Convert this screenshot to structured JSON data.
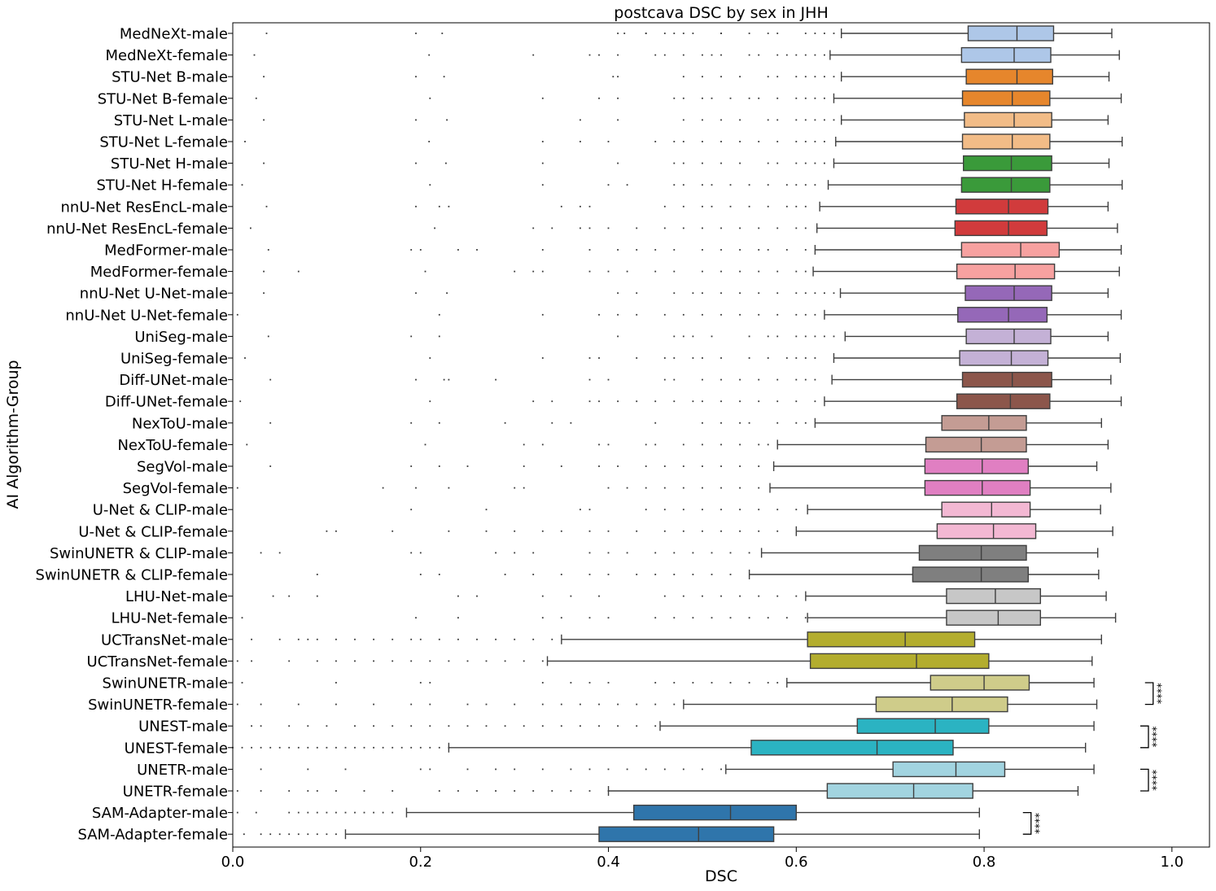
{
  "chart_data": {
    "type": "boxplot",
    "orientation": "horizontal",
    "title": "postcava DSC by sex in JHH",
    "xlabel": "DSC",
    "ylabel": "AI Algorithm-Group",
    "xlim": [
      0.0,
      1.04
    ],
    "xticks": [
      "0.0",
      "0.2",
      "0.4",
      "0.6",
      "0.8",
      "1.0"
    ],
    "xtick_values": [
      0.0,
      0.2,
      0.4,
      0.6,
      0.8,
      1.0
    ],
    "grid": false,
    "groups": [
      {
        "label": "MedNeXt-male",
        "color": "#aec7e8",
        "whislo": 0.648,
        "q1": 0.783,
        "median": 0.835,
        "q3": 0.874,
        "whishi": 0.936,
        "outliers": [
          0.036,
          0.195,
          0.223,
          0.41,
          0.417,
          0.44,
          0.44,
          0.46,
          0.47,
          0.48,
          0.49,
          0.52,
          0.52,
          0.55,
          0.57,
          0.58,
          0.61,
          0.62,
          0.63,
          0.64
        ]
      },
      {
        "label": "MedNeXt-female",
        "color": "#aec7e8",
        "whislo": 0.636,
        "q1": 0.776,
        "median": 0.832,
        "q3": 0.871,
        "whishi": 0.944,
        "outliers": [
          0.023,
          0.209,
          0.32,
          0.38,
          0.39,
          0.41,
          0.45,
          0.46,
          0.48,
          0.5,
          0.51,
          0.52,
          0.55,
          0.56,
          0.58,
          0.59,
          0.6,
          0.61,
          0.62,
          0.63
        ]
      },
      {
        "label": "STU-Net B-male",
        "color": "#e6862c",
        "whislo": 0.648,
        "q1": 0.781,
        "median": 0.835,
        "q3": 0.873,
        "whishi": 0.933,
        "outliers": [
          0.033,
          0.195,
          0.225,
          0.405,
          0.41,
          0.48,
          0.5,
          0.52,
          0.54,
          0.57,
          0.58,
          0.6,
          0.61,
          0.62,
          0.63,
          0.64
        ]
      },
      {
        "label": "STU-Net B-female",
        "color": "#e6862c",
        "whislo": 0.64,
        "q1": 0.777,
        "median": 0.83,
        "q3": 0.87,
        "whishi": 0.946,
        "outliers": [
          0.025,
          0.21,
          0.33,
          0.39,
          0.41,
          0.47,
          0.48,
          0.5,
          0.51,
          0.53,
          0.55,
          0.56,
          0.58,
          0.6,
          0.61,
          0.62,
          0.63
        ]
      },
      {
        "label": "STU-Net L-male",
        "color": "#f2bc87",
        "whislo": 0.648,
        "q1": 0.779,
        "median": 0.832,
        "q3": 0.872,
        "whishi": 0.932,
        "outliers": [
          0.033,
          0.195,
          0.228,
          0.37,
          0.41,
          0.48,
          0.5,
          0.52,
          0.54,
          0.57,
          0.58,
          0.6,
          0.61,
          0.62,
          0.63,
          0.64
        ]
      },
      {
        "label": "STU-Net L-female",
        "color": "#f2bc87",
        "whislo": 0.642,
        "q1": 0.777,
        "median": 0.83,
        "q3": 0.87,
        "whishi": 0.947,
        "outliers": [
          0.013,
          0.209,
          0.33,
          0.37,
          0.4,
          0.45,
          0.47,
          0.48,
          0.5,
          0.52,
          0.54,
          0.56,
          0.58,
          0.6,
          0.61,
          0.62,
          0.63
        ]
      },
      {
        "label": "STU-Net H-male",
        "color": "#3a9a3a",
        "whislo": 0.64,
        "q1": 0.778,
        "median": 0.829,
        "q3": 0.872,
        "whishi": 0.933,
        "outliers": [
          0.033,
          0.195,
          0.227,
          0.33,
          0.41,
          0.47,
          0.48,
          0.5,
          0.52,
          0.54,
          0.57,
          0.58,
          0.6,
          0.61,
          0.62,
          0.63
        ]
      },
      {
        "label": "STU-Net H-female",
        "color": "#3a9a3a",
        "whislo": 0.634,
        "q1": 0.776,
        "median": 0.829,
        "q3": 0.87,
        "whishi": 0.947,
        "outliers": [
          0.01,
          0.21,
          0.33,
          0.4,
          0.42,
          0.47,
          0.48,
          0.5,
          0.51,
          0.53,
          0.55,
          0.57,
          0.59,
          0.6,
          0.61,
          0.62
        ]
      },
      {
        "label": "nnU-Net ResEncL-male",
        "color": "#d13b3c",
        "whislo": 0.625,
        "q1": 0.77,
        "median": 0.826,
        "q3": 0.868,
        "whishi": 0.932,
        "outliers": [
          0.036,
          0.195,
          0.22,
          0.23,
          0.35,
          0.37,
          0.38,
          0.46,
          0.48,
          0.5,
          0.51,
          0.53,
          0.55,
          0.57,
          0.59,
          0.6,
          0.61
        ]
      },
      {
        "label": "nnU-Net ResEncL-female",
        "color": "#d13b3c",
        "whislo": 0.622,
        "q1": 0.769,
        "median": 0.826,
        "q3": 0.867,
        "whishi": 0.942,
        "outliers": [
          0.019,
          0.215,
          0.32,
          0.34,
          0.37,
          0.38,
          0.4,
          0.43,
          0.46,
          0.48,
          0.5,
          0.52,
          0.54,
          0.56,
          0.58,
          0.6,
          0.61
        ]
      },
      {
        "label": "MedFormer-male",
        "color": "#f7a1a0",
        "whislo": 0.62,
        "q1": 0.776,
        "median": 0.839,
        "q3": 0.88,
        "whishi": 0.946,
        "outliers": [
          0.038,
          0.19,
          0.2,
          0.24,
          0.26,
          0.33,
          0.38,
          0.41,
          0.43,
          0.45,
          0.47,
          0.5,
          0.52,
          0.54,
          0.56,
          0.57,
          0.59,
          0.61
        ]
      },
      {
        "label": "MedFormer-female",
        "color": "#f7a1a0",
        "whislo": 0.618,
        "q1": 0.771,
        "median": 0.833,
        "q3": 0.875,
        "whishi": 0.944,
        "outliers": [
          0.033,
          0.07,
          0.205,
          0.3,
          0.32,
          0.33,
          0.38,
          0.4,
          0.42,
          0.45,
          0.47,
          0.5,
          0.52,
          0.54,
          0.56,
          0.58,
          0.6,
          0.61
        ]
      },
      {
        "label": "nnU-Net U-Net-male",
        "color": "#9568b8",
        "whislo": 0.647,
        "q1": 0.78,
        "median": 0.832,
        "q3": 0.872,
        "whishi": 0.932,
        "outliers": [
          0.033,
          0.195,
          0.228,
          0.41,
          0.43,
          0.47,
          0.49,
          0.5,
          0.52,
          0.54,
          0.56,
          0.58,
          0.6,
          0.61,
          0.62,
          0.63,
          0.64
        ]
      },
      {
        "label": "nnU-Net U-Net-female",
        "color": "#9568b8",
        "whislo": 0.63,
        "q1": 0.772,
        "median": 0.826,
        "q3": 0.867,
        "whishi": 0.946,
        "outliers": [
          0.005,
          0.22,
          0.33,
          0.39,
          0.41,
          0.43,
          0.46,
          0.48,
          0.5,
          0.52,
          0.54,
          0.56,
          0.58,
          0.6,
          0.61,
          0.62
        ]
      },
      {
        "label": "UniSeg-male",
        "color": "#c4b1d6",
        "whislo": 0.652,
        "q1": 0.781,
        "median": 0.832,
        "q3": 0.871,
        "whishi": 0.932,
        "outliers": [
          0.038,
          0.19,
          0.22,
          0.41,
          0.47,
          0.48,
          0.49,
          0.51,
          0.55,
          0.57,
          0.58,
          0.6,
          0.61,
          0.62,
          0.63,
          0.64
        ]
      },
      {
        "label": "UniSeg-female",
        "color": "#c4b1d6",
        "whislo": 0.64,
        "q1": 0.774,
        "median": 0.829,
        "q3": 0.868,
        "whishi": 0.945,
        "outliers": [
          0.013,
          0.21,
          0.33,
          0.38,
          0.39,
          0.43,
          0.46,
          0.47,
          0.49,
          0.5,
          0.52,
          0.55,
          0.57,
          0.59,
          0.6,
          0.61,
          0.62
        ]
      },
      {
        "label": "Diff-UNet-male",
        "color": "#8c564b",
        "whislo": 0.638,
        "q1": 0.777,
        "median": 0.83,
        "q3": 0.872,
        "whishi": 0.935,
        "outliers": [
          0.04,
          0.195,
          0.225,
          0.23,
          0.28,
          0.38,
          0.4,
          0.46,
          0.47,
          0.5,
          0.52,
          0.54,
          0.56,
          0.58,
          0.6,
          0.61,
          0.62
        ]
      },
      {
        "label": "Diff-UNet-female",
        "color": "#8c564b",
        "whislo": 0.63,
        "q1": 0.771,
        "median": 0.828,
        "q3": 0.87,
        "whishi": 0.946,
        "outliers": [
          0.008,
          0.21,
          0.32,
          0.34,
          0.38,
          0.39,
          0.41,
          0.43,
          0.45,
          0.47,
          0.49,
          0.5,
          0.52,
          0.54,
          0.56,
          0.58,
          0.6,
          0.62
        ]
      },
      {
        "label": "NexToU-male",
        "color": "#c49c94",
        "whislo": 0.62,
        "q1": 0.755,
        "median": 0.805,
        "q3": 0.845,
        "whishi": 0.925,
        "outliers": [
          0.04,
          0.19,
          0.22,
          0.29,
          0.34,
          0.36,
          0.45,
          0.5,
          0.52,
          0.54,
          0.55,
          0.58,
          0.6,
          0.61
        ]
      },
      {
        "label": "NexToU-female",
        "color": "#c49c94",
        "whislo": 0.58,
        "q1": 0.738,
        "median": 0.797,
        "q3": 0.845,
        "whishi": 0.932,
        "outliers": [
          0.015,
          0.205,
          0.31,
          0.33,
          0.39,
          0.4,
          0.44,
          0.45,
          0.48,
          0.5,
          0.52,
          0.54,
          0.56,
          0.57
        ]
      },
      {
        "label": "SegVol-male",
        "color": "#e07fc2",
        "whislo": 0.576,
        "q1": 0.737,
        "median": 0.798,
        "q3": 0.847,
        "whishi": 0.92,
        "outliers": [
          0.04,
          0.19,
          0.22,
          0.25,
          0.31,
          0.35,
          0.39,
          0.41,
          0.44,
          0.46,
          0.48,
          0.5,
          0.52,
          0.54,
          0.56
        ]
      },
      {
        "label": "SegVol-female",
        "color": "#e07fc2",
        "whislo": 0.572,
        "q1": 0.737,
        "median": 0.798,
        "q3": 0.849,
        "whishi": 0.935,
        "outliers": [
          0.005,
          0.16,
          0.195,
          0.23,
          0.3,
          0.31,
          0.4,
          0.42,
          0.44,
          0.46,
          0.48,
          0.5,
          0.52,
          0.54,
          0.56
        ]
      },
      {
        "label": "U-Net & CLIP-male",
        "color": "#f3b8d3",
        "whislo": 0.612,
        "q1": 0.755,
        "median": 0.808,
        "q3": 0.849,
        "whishi": 0.924,
        "outliers": [
          0.19,
          0.27,
          0.37,
          0.38,
          0.44,
          0.46,
          0.48,
          0.5,
          0.52,
          0.54,
          0.56,
          0.58,
          0.6
        ]
      },
      {
        "label": "U-Net & CLIP-female",
        "color": "#f3b8d3",
        "whislo": 0.6,
        "q1": 0.75,
        "median": 0.81,
        "q3": 0.855,
        "whishi": 0.937,
        "outliers": [
          0.1,
          0.11,
          0.17,
          0.23,
          0.27,
          0.3,
          0.33,
          0.35,
          0.38,
          0.4,
          0.43,
          0.46,
          0.48,
          0.5,
          0.52,
          0.54,
          0.56,
          0.58
        ]
      },
      {
        "label": "SwinUNETR & CLIP-male",
        "color": "#7f7f7f",
        "whislo": 0.563,
        "q1": 0.731,
        "median": 0.797,
        "q3": 0.845,
        "whishi": 0.921,
        "outliers": [
          0.03,
          0.05,
          0.19,
          0.2,
          0.28,
          0.3,
          0.32,
          0.38,
          0.4,
          0.42,
          0.45,
          0.47,
          0.49,
          0.51,
          0.53,
          0.55
        ]
      },
      {
        "label": "SwinUNETR & CLIP-female",
        "color": "#7f7f7f",
        "whislo": 0.55,
        "q1": 0.724,
        "median": 0.797,
        "q3": 0.847,
        "whishi": 0.922,
        "outliers": [
          0.09,
          0.2,
          0.22,
          0.29,
          0.32,
          0.35,
          0.38,
          0.4,
          0.43,
          0.45,
          0.47,
          0.49,
          0.51,
          0.53
        ]
      },
      {
        "label": "LHU-Net-male",
        "color": "#c7c7c7",
        "whislo": 0.61,
        "q1": 0.76,
        "median": 0.812,
        "q3": 0.86,
        "whishi": 0.93,
        "outliers": [
          0.043,
          0.06,
          0.09,
          0.24,
          0.26,
          0.33,
          0.36,
          0.39,
          0.46,
          0.48,
          0.5,
          0.52,
          0.54,
          0.56,
          0.58,
          0.6
        ]
      },
      {
        "label": "LHU-Net-female",
        "color": "#c7c7c7",
        "whislo": 0.612,
        "q1": 0.76,
        "median": 0.815,
        "q3": 0.86,
        "whishi": 0.94,
        "outliers": [
          0.01,
          0.195,
          0.24,
          0.33,
          0.35,
          0.38,
          0.4,
          0.45,
          0.47,
          0.49,
          0.51,
          0.53,
          0.55,
          0.57,
          0.59,
          0.61
        ]
      },
      {
        "label": "UCTransNet-male",
        "color": "#b3ad2e",
        "whislo": 0.35,
        "q1": 0.612,
        "median": 0.716,
        "q3": 0.79,
        "whishi": 0.925,
        "outliers": [
          0.02,
          0.05,
          0.07,
          0.08,
          0.09,
          0.11,
          0.13,
          0.15,
          0.17,
          0.19,
          0.2,
          0.22,
          0.24,
          0.26,
          0.28,
          0.3,
          0.32,
          0.34
        ]
      },
      {
        "label": "UCTransNet-female",
        "color": "#b3ad2e",
        "whislo": 0.335,
        "q1": 0.615,
        "median": 0.728,
        "q3": 0.805,
        "whishi": 0.915,
        "outliers": [
          0.005,
          0.02,
          0.06,
          0.09,
          0.11,
          0.13,
          0.15,
          0.17,
          0.19,
          0.21,
          0.23,
          0.25,
          0.27,
          0.29,
          0.31,
          0.33
        ]
      },
      {
        "label": "SwinUNETR-male",
        "color": "#cfcc8a",
        "whislo": 0.59,
        "q1": 0.743,
        "median": 0.8,
        "q3": 0.848,
        "whishi": 0.917,
        "outliers": [
          0.01,
          0.11,
          0.2,
          0.21,
          0.33,
          0.36,
          0.38,
          0.4,
          0.45,
          0.47,
          0.49,
          0.51,
          0.53,
          0.55,
          0.57,
          0.58
        ]
      },
      {
        "label": "SwinUNETR-female",
        "color": "#cfcc8a",
        "whislo": 0.48,
        "q1": 0.685,
        "median": 0.766,
        "q3": 0.825,
        "whishi": 0.92,
        "outliers": [
          0.005,
          0.03,
          0.07,
          0.11,
          0.15,
          0.19,
          0.21,
          0.25,
          0.27,
          0.3,
          0.33,
          0.35,
          0.37,
          0.39,
          0.41,
          0.43,
          0.45,
          0.47
        ]
      },
      {
        "label": "UNEST-male",
        "color": "#2bb3c2",
        "whislo": 0.455,
        "q1": 0.665,
        "median": 0.748,
        "q3": 0.805,
        "whishi": 0.917,
        "outliers": [
          0.02,
          0.03,
          0.06,
          0.08,
          0.1,
          0.13,
          0.15,
          0.17,
          0.19,
          0.21,
          0.23,
          0.25,
          0.27,
          0.29,
          0.31,
          0.33,
          0.35,
          0.37,
          0.39,
          0.41,
          0.43,
          0.45
        ]
      },
      {
        "label": "UNEST-female",
        "color": "#2bb3c2",
        "whislo": 0.23,
        "q1": 0.552,
        "median": 0.686,
        "q3": 0.767,
        "whishi": 0.908,
        "outliers": [
          0.0,
          0.01,
          0.02,
          0.03,
          0.04,
          0.05,
          0.06,
          0.07,
          0.08,
          0.09,
          0.1,
          0.11,
          0.12,
          0.13,
          0.14,
          0.15,
          0.16,
          0.17,
          0.18,
          0.19,
          0.2,
          0.21,
          0.22,
          0.23
        ]
      },
      {
        "label": "UNETR-male",
        "color": "#a2d4e0",
        "whislo": 0.525,
        "q1": 0.703,
        "median": 0.77,
        "q3": 0.822,
        "whishi": 0.917,
        "outliers": [
          0.03,
          0.08,
          0.12,
          0.2,
          0.21,
          0.25,
          0.28,
          0.3,
          0.33,
          0.36,
          0.38,
          0.4,
          0.42,
          0.44,
          0.46,
          0.48,
          0.5,
          0.52
        ]
      },
      {
        "label": "UNETR-female",
        "color": "#a2d4e0",
        "whislo": 0.4,
        "q1": 0.633,
        "median": 0.725,
        "q3": 0.788,
        "whishi": 0.9,
        "outliers": [
          0.005,
          0.03,
          0.06,
          0.08,
          0.09,
          0.11,
          0.14,
          0.17,
          0.22,
          0.24,
          0.26,
          0.28,
          0.3,
          0.32,
          0.34,
          0.36,
          0.38,
          0.4
        ]
      },
      {
        "label": "SAM-Adapter-male",
        "color": "#2f75ab",
        "whislo": 0.185,
        "q1": 0.427,
        "median": 0.53,
        "q3": 0.6,
        "whishi": 0.795,
        "outliers": [
          0.005,
          0.025,
          0.06,
          0.07,
          0.08,
          0.09,
          0.1,
          0.11,
          0.12,
          0.13,
          0.14,
          0.15,
          0.16,
          0.17
        ]
      },
      {
        "label": "SAM-Adapter-female",
        "color": "#2f75ab",
        "whislo": 0.12,
        "q1": 0.39,
        "median": 0.496,
        "q3": 0.576,
        "whishi": 0.795,
        "outliers": [
          0.012,
          0.03,
          0.04,
          0.05,
          0.06,
          0.07,
          0.08,
          0.09,
          0.1,
          0.11
        ]
      }
    ],
    "significance": [
      {
        "pair": [
          "SwinUNETR-male",
          "SwinUNETR-female"
        ],
        "label": "****",
        "at": 0.98
      },
      {
        "pair": [
          "UNEST-male",
          "UNEST-female"
        ],
        "label": "****",
        "at": 0.975
      },
      {
        "pair": [
          "UNETR-male",
          "UNETR-female"
        ],
        "label": "****",
        "at": 0.975
      },
      {
        "pair": [
          "SAM-Adapter-male",
          "SAM-Adapter-female"
        ],
        "label": "****",
        "at": 0.85
      }
    ]
  }
}
